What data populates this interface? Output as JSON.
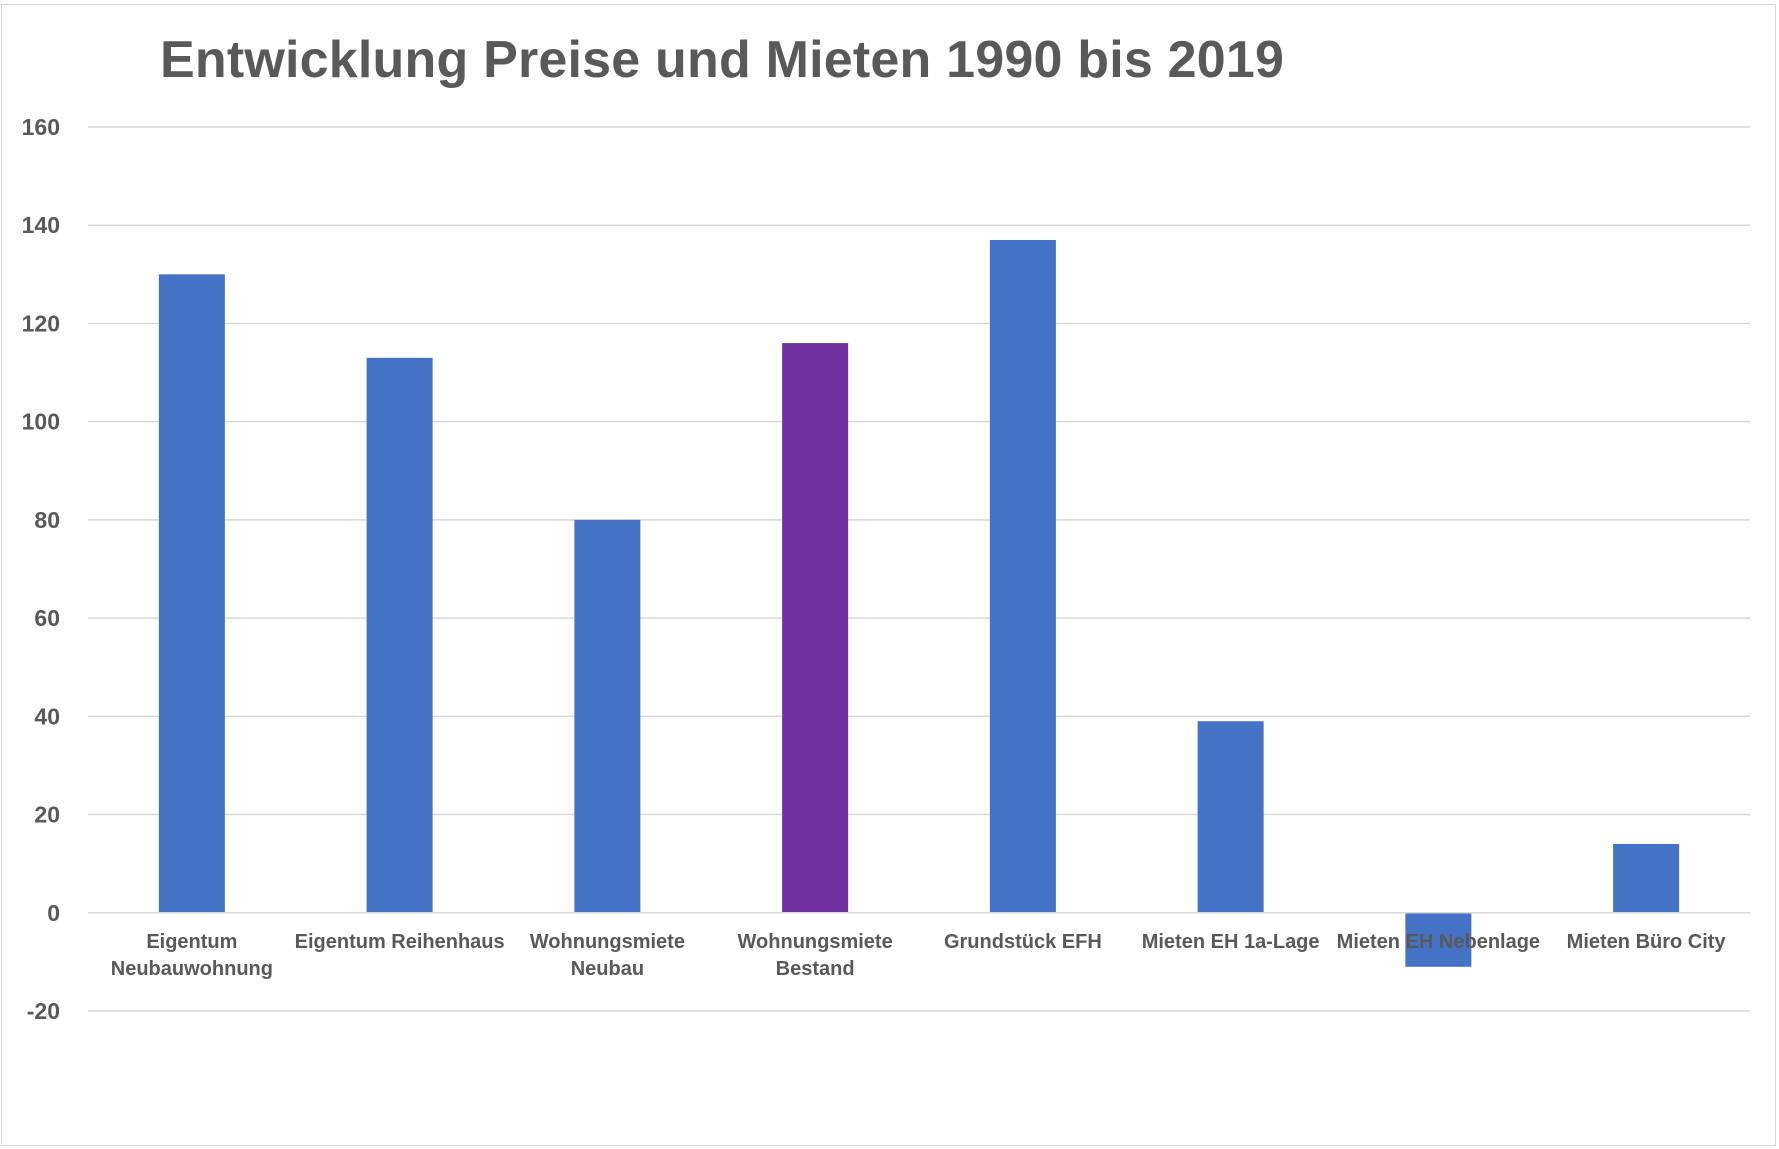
{
  "chart_data": {
    "type": "bar",
    "title": "Entwicklung Preise und Mieten 1990 bis 2019",
    "xlabel": "",
    "ylabel": "",
    "ylim": [
      -20,
      160
    ],
    "yticks": [
      -20,
      0,
      20,
      40,
      60,
      80,
      100,
      120,
      140,
      160
    ],
    "grid": true,
    "legend": "none",
    "categories": [
      [
        "Eigentum",
        "Neubauwohnung"
      ],
      [
        "Eigentum Reihenhaus"
      ],
      [
        "Wohnungsmiete",
        "Neubau"
      ],
      [
        "Wohnungsmiete",
        "Bestand"
      ],
      [
        "Grundstück EFH"
      ],
      [
        "Mieten EH 1a-Lage"
      ],
      [
        "Mieten EH Nebenlage"
      ],
      [
        "Mieten Büro City"
      ]
    ],
    "values": [
      130,
      113,
      80,
      116,
      137,
      39,
      -11,
      14
    ],
    "colors": [
      "#4472c4",
      "#4472c4",
      "#4472c4",
      "#7030a0",
      "#4472c4",
      "#4472c4",
      "#4472c4",
      "#4472c4"
    ]
  }
}
